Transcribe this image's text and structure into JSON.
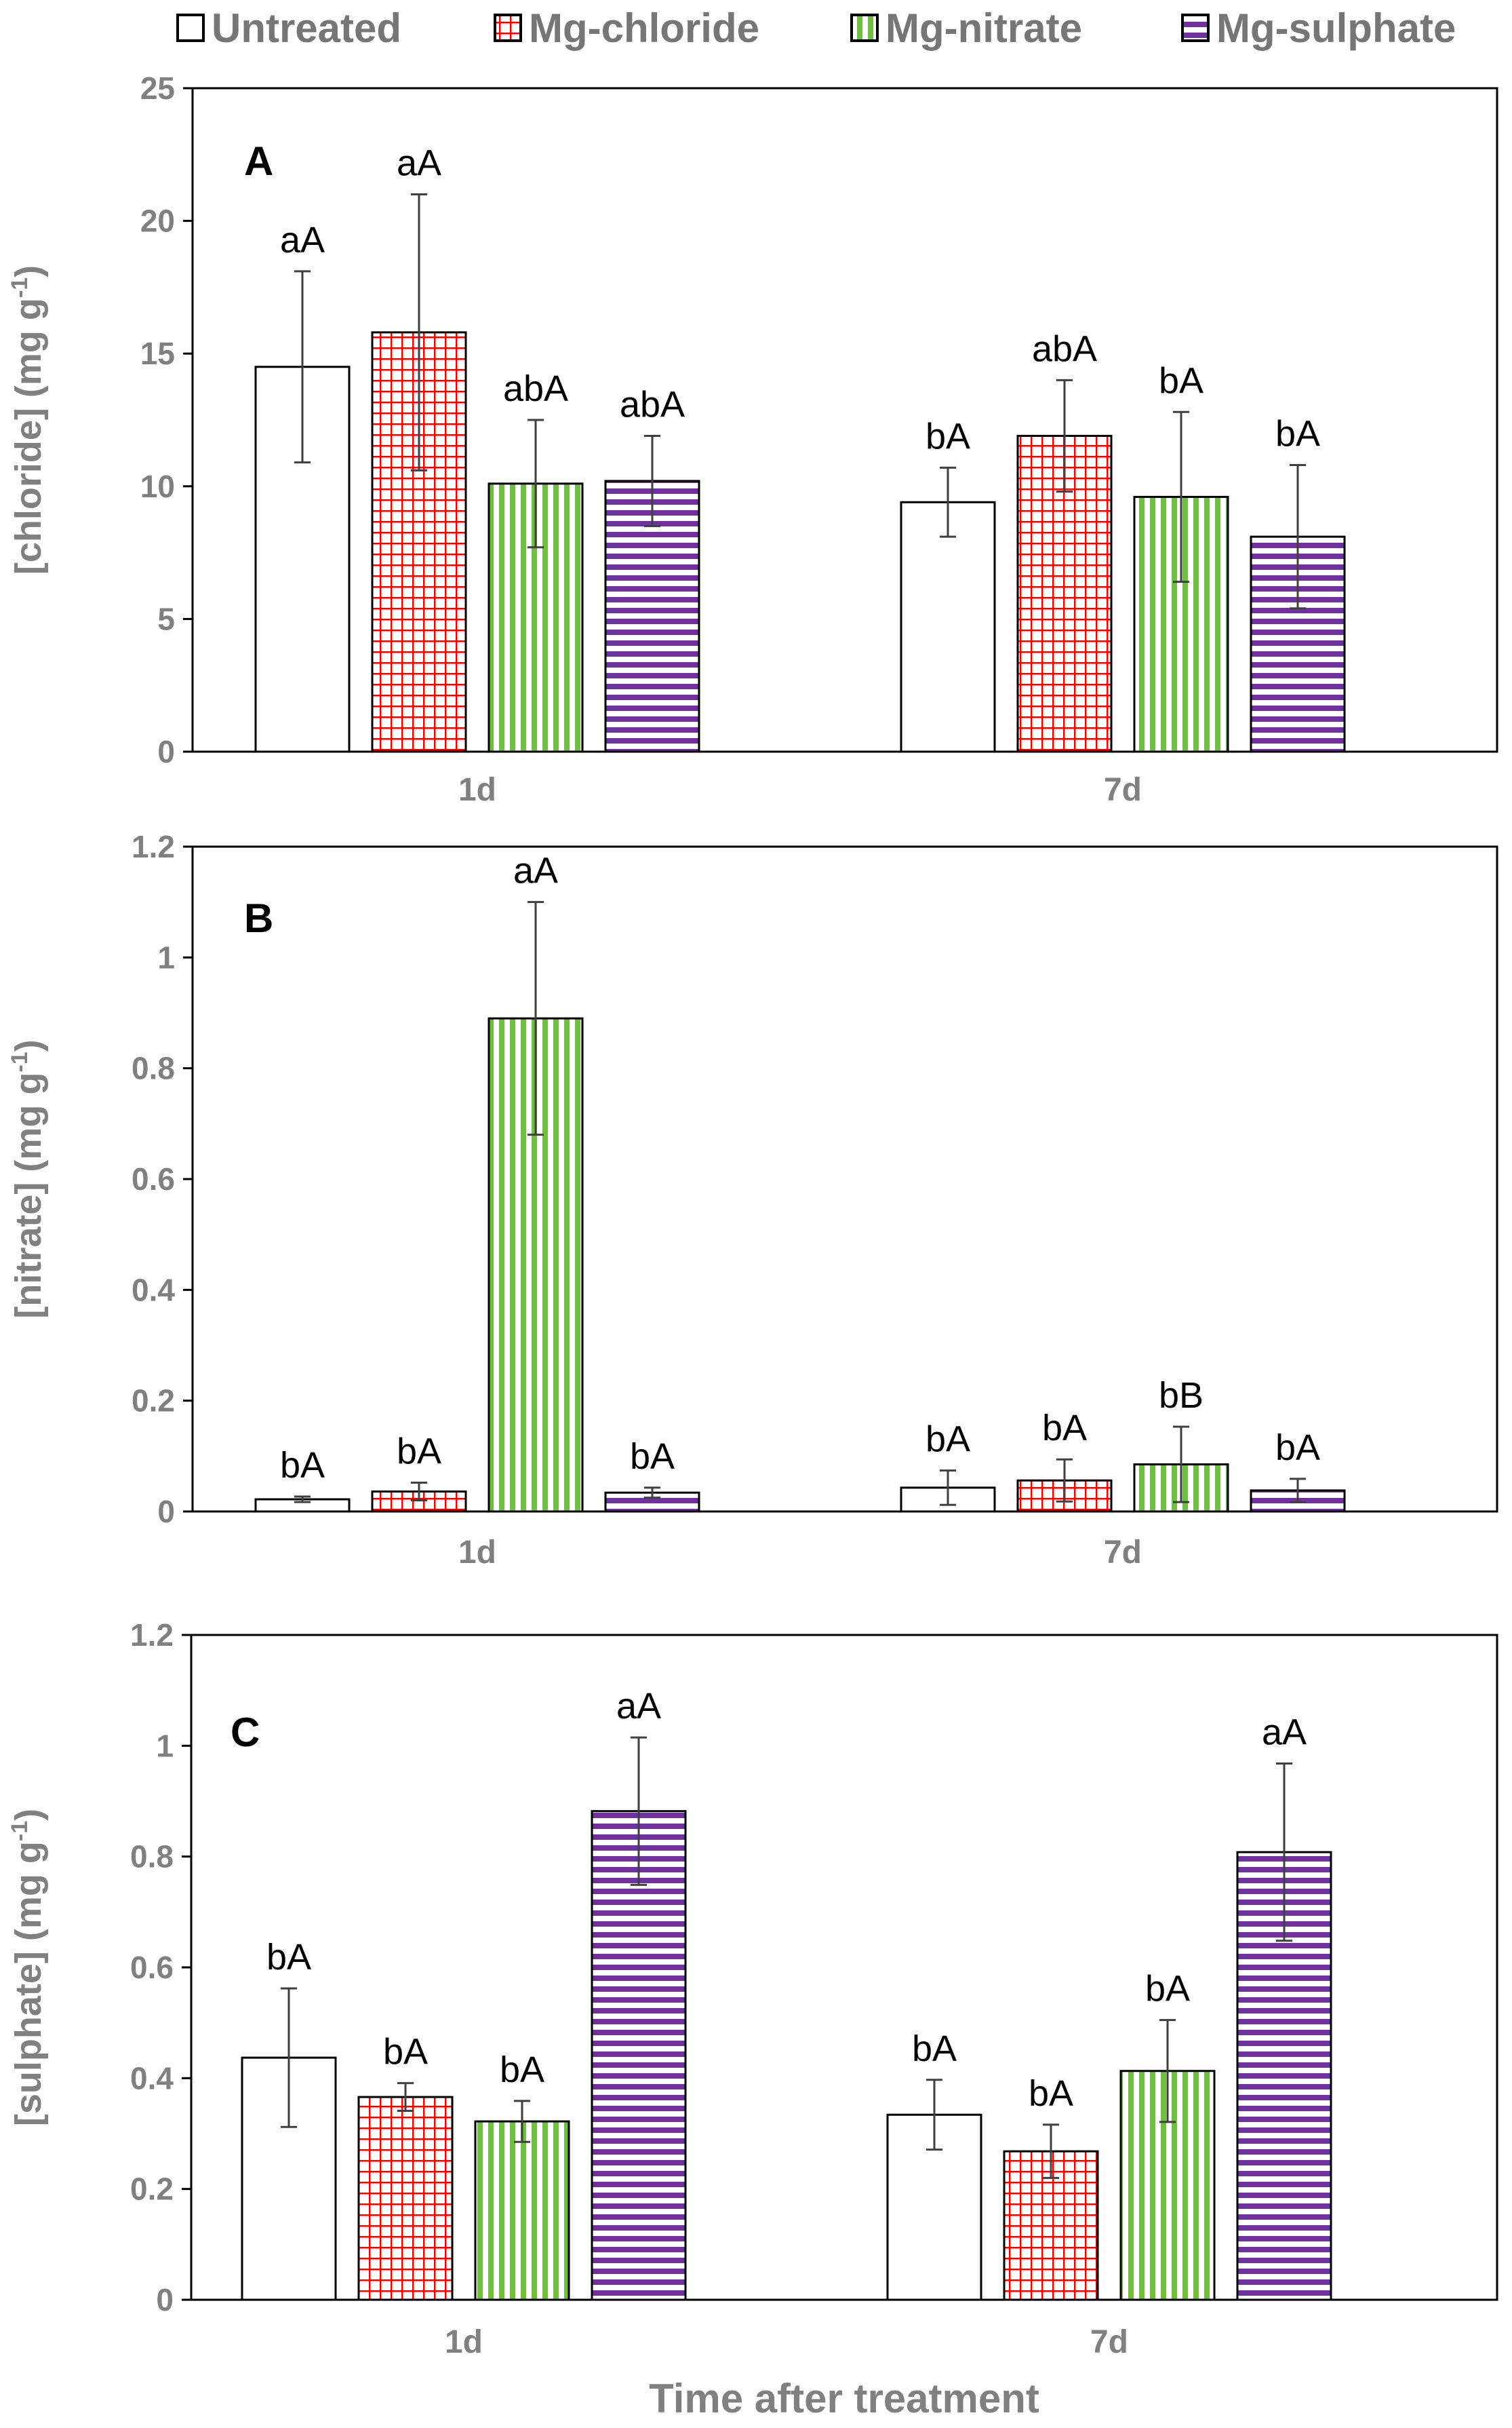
{
  "colors": {
    "untreated": "#ffffff",
    "chloride": "#ff0000",
    "nitrate": "#70c040",
    "sulphate": "#7030a0",
    "axis": "#808080",
    "error": "#404040"
  },
  "legend": [
    {
      "name": "Untreated",
      "pattern": "solid"
    },
    {
      "name": "Mg-chloride",
      "pattern": "grid"
    },
    {
      "name": "Mg-nitrate",
      "pattern": "vertical"
    },
    {
      "name": "Mg-sulphate",
      "pattern": "horizontal"
    }
  ],
  "xlabel": "Time after  treatment",
  "chart_data": [
    {
      "type": "bar",
      "panel": "A",
      "ylabel": "[chloride] (mg g",
      "ylabel_sup": "-1",
      "ylabel_end": ")",
      "categories": [
        "1d",
        "7d"
      ],
      "ylim": [
        0,
        25
      ],
      "yticks": [
        0,
        5,
        10,
        15,
        20,
        25
      ],
      "ytick_labels": [
        "0",
        "5",
        "10",
        "15",
        "20",
        "25"
      ],
      "series": [
        {
          "name": "Untreated",
          "values": [
            14.5,
            9.4
          ],
          "errors": [
            3.6,
            1.3
          ],
          "labels": [
            "aA",
            "bA"
          ]
        },
        {
          "name": "Mg-chloride",
          "values": [
            15.8,
            11.9
          ],
          "errors": [
            5.2,
            2.1
          ],
          "labels": [
            "aA",
            "abA"
          ]
        },
        {
          "name": "Mg-nitrate",
          "values": [
            10.1,
            9.6
          ],
          "errors": [
            2.4,
            3.2
          ],
          "labels": [
            "abA",
            "bA"
          ]
        },
        {
          "name": "Mg-sulphate",
          "values": [
            10.2,
            8.1
          ],
          "errors": [
            1.7,
            2.7
          ],
          "labels": [
            "abA",
            "bA"
          ]
        }
      ]
    },
    {
      "type": "bar",
      "panel": "B",
      "ylabel": "[nitrate] (mg g",
      "ylabel_sup": "-1",
      "ylabel_end": ")",
      "categories": [
        "1d",
        "7d"
      ],
      "ylim": [
        0,
        1.2
      ],
      "yticks": [
        0,
        0.2,
        0.4,
        0.6,
        0.8,
        1,
        1.2
      ],
      "ytick_labels": [
        "0",
        "0.2",
        "0.4",
        "0.6",
        "0.8",
        "1",
        "1.2"
      ],
      "series": [
        {
          "name": "Untreated",
          "values": [
            0.022,
            0.043
          ],
          "errors": [
            0.005,
            0.031
          ],
          "labels": [
            "bA",
            "bA"
          ]
        },
        {
          "name": "Mg-chloride",
          "values": [
            0.036,
            0.056
          ],
          "errors": [
            0.016,
            0.038
          ],
          "labels": [
            "bA",
            "bA"
          ]
        },
        {
          "name": "Mg-nitrate",
          "values": [
            0.89,
            0.085
          ],
          "errors": [
            0.21,
            0.068
          ],
          "labels": [
            "aA",
            "bB"
          ]
        },
        {
          "name": "Mg-sulphate",
          "values": [
            0.034,
            0.038
          ],
          "errors": [
            0.009,
            0.021
          ],
          "labels": [
            "bA",
            "bA"
          ]
        }
      ]
    },
    {
      "type": "bar",
      "panel": "C",
      "ylabel": "[sulphate] (mg g",
      "ylabel_sup": "-1",
      "ylabel_end": ")",
      "categories": [
        "1d",
        "7d"
      ],
      "ylim": [
        0,
        1.2
      ],
      "yticks": [
        0,
        0.2,
        0.4,
        0.6,
        0.8,
        1,
        1.2
      ],
      "ytick_labels": [
        "0",
        "0.2",
        "0.4",
        "0.6",
        "0.8",
        "1",
        "1.2"
      ],
      "series": [
        {
          "name": "Untreated",
          "values": [
            0.437,
            0.334
          ],
          "errors": [
            0.125,
            0.063
          ],
          "labels": [
            "bA",
            "bA"
          ]
        },
        {
          "name": "Mg-chloride",
          "values": [
            0.366,
            0.268
          ],
          "errors": [
            0.025,
            0.048
          ],
          "labels": [
            "bA",
            "bA"
          ]
        },
        {
          "name": "Mg-nitrate",
          "values": [
            0.322,
            0.413
          ],
          "errors": [
            0.037,
            0.092
          ],
          "labels": [
            "bA",
            "bA"
          ]
        },
        {
          "name": "Mg-sulphate",
          "values": [
            0.882,
            0.808
          ],
          "errors": [
            0.133,
            0.16
          ],
          "labels": [
            "aA",
            "aA"
          ]
        }
      ]
    }
  ]
}
